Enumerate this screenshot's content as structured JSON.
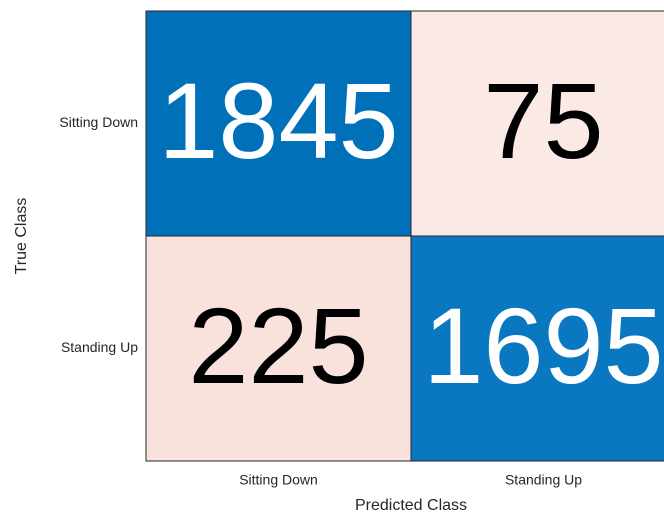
{
  "chart_data": {
    "type": "heatmap",
    "xlabel": "Predicted Class",
    "ylabel": "True Class",
    "x_categories": [
      "Sitting Down",
      "Standing Up"
    ],
    "y_categories": [
      "Sitting Down",
      "Standing Up"
    ],
    "values": [
      [
        1845,
        75
      ],
      [
        225,
        1695
      ]
    ],
    "cell_colors": [
      [
        "#0070b9",
        "#fae9e5"
      ],
      [
        "#f8e2db",
        "#0a78c1"
      ]
    ]
  }
}
